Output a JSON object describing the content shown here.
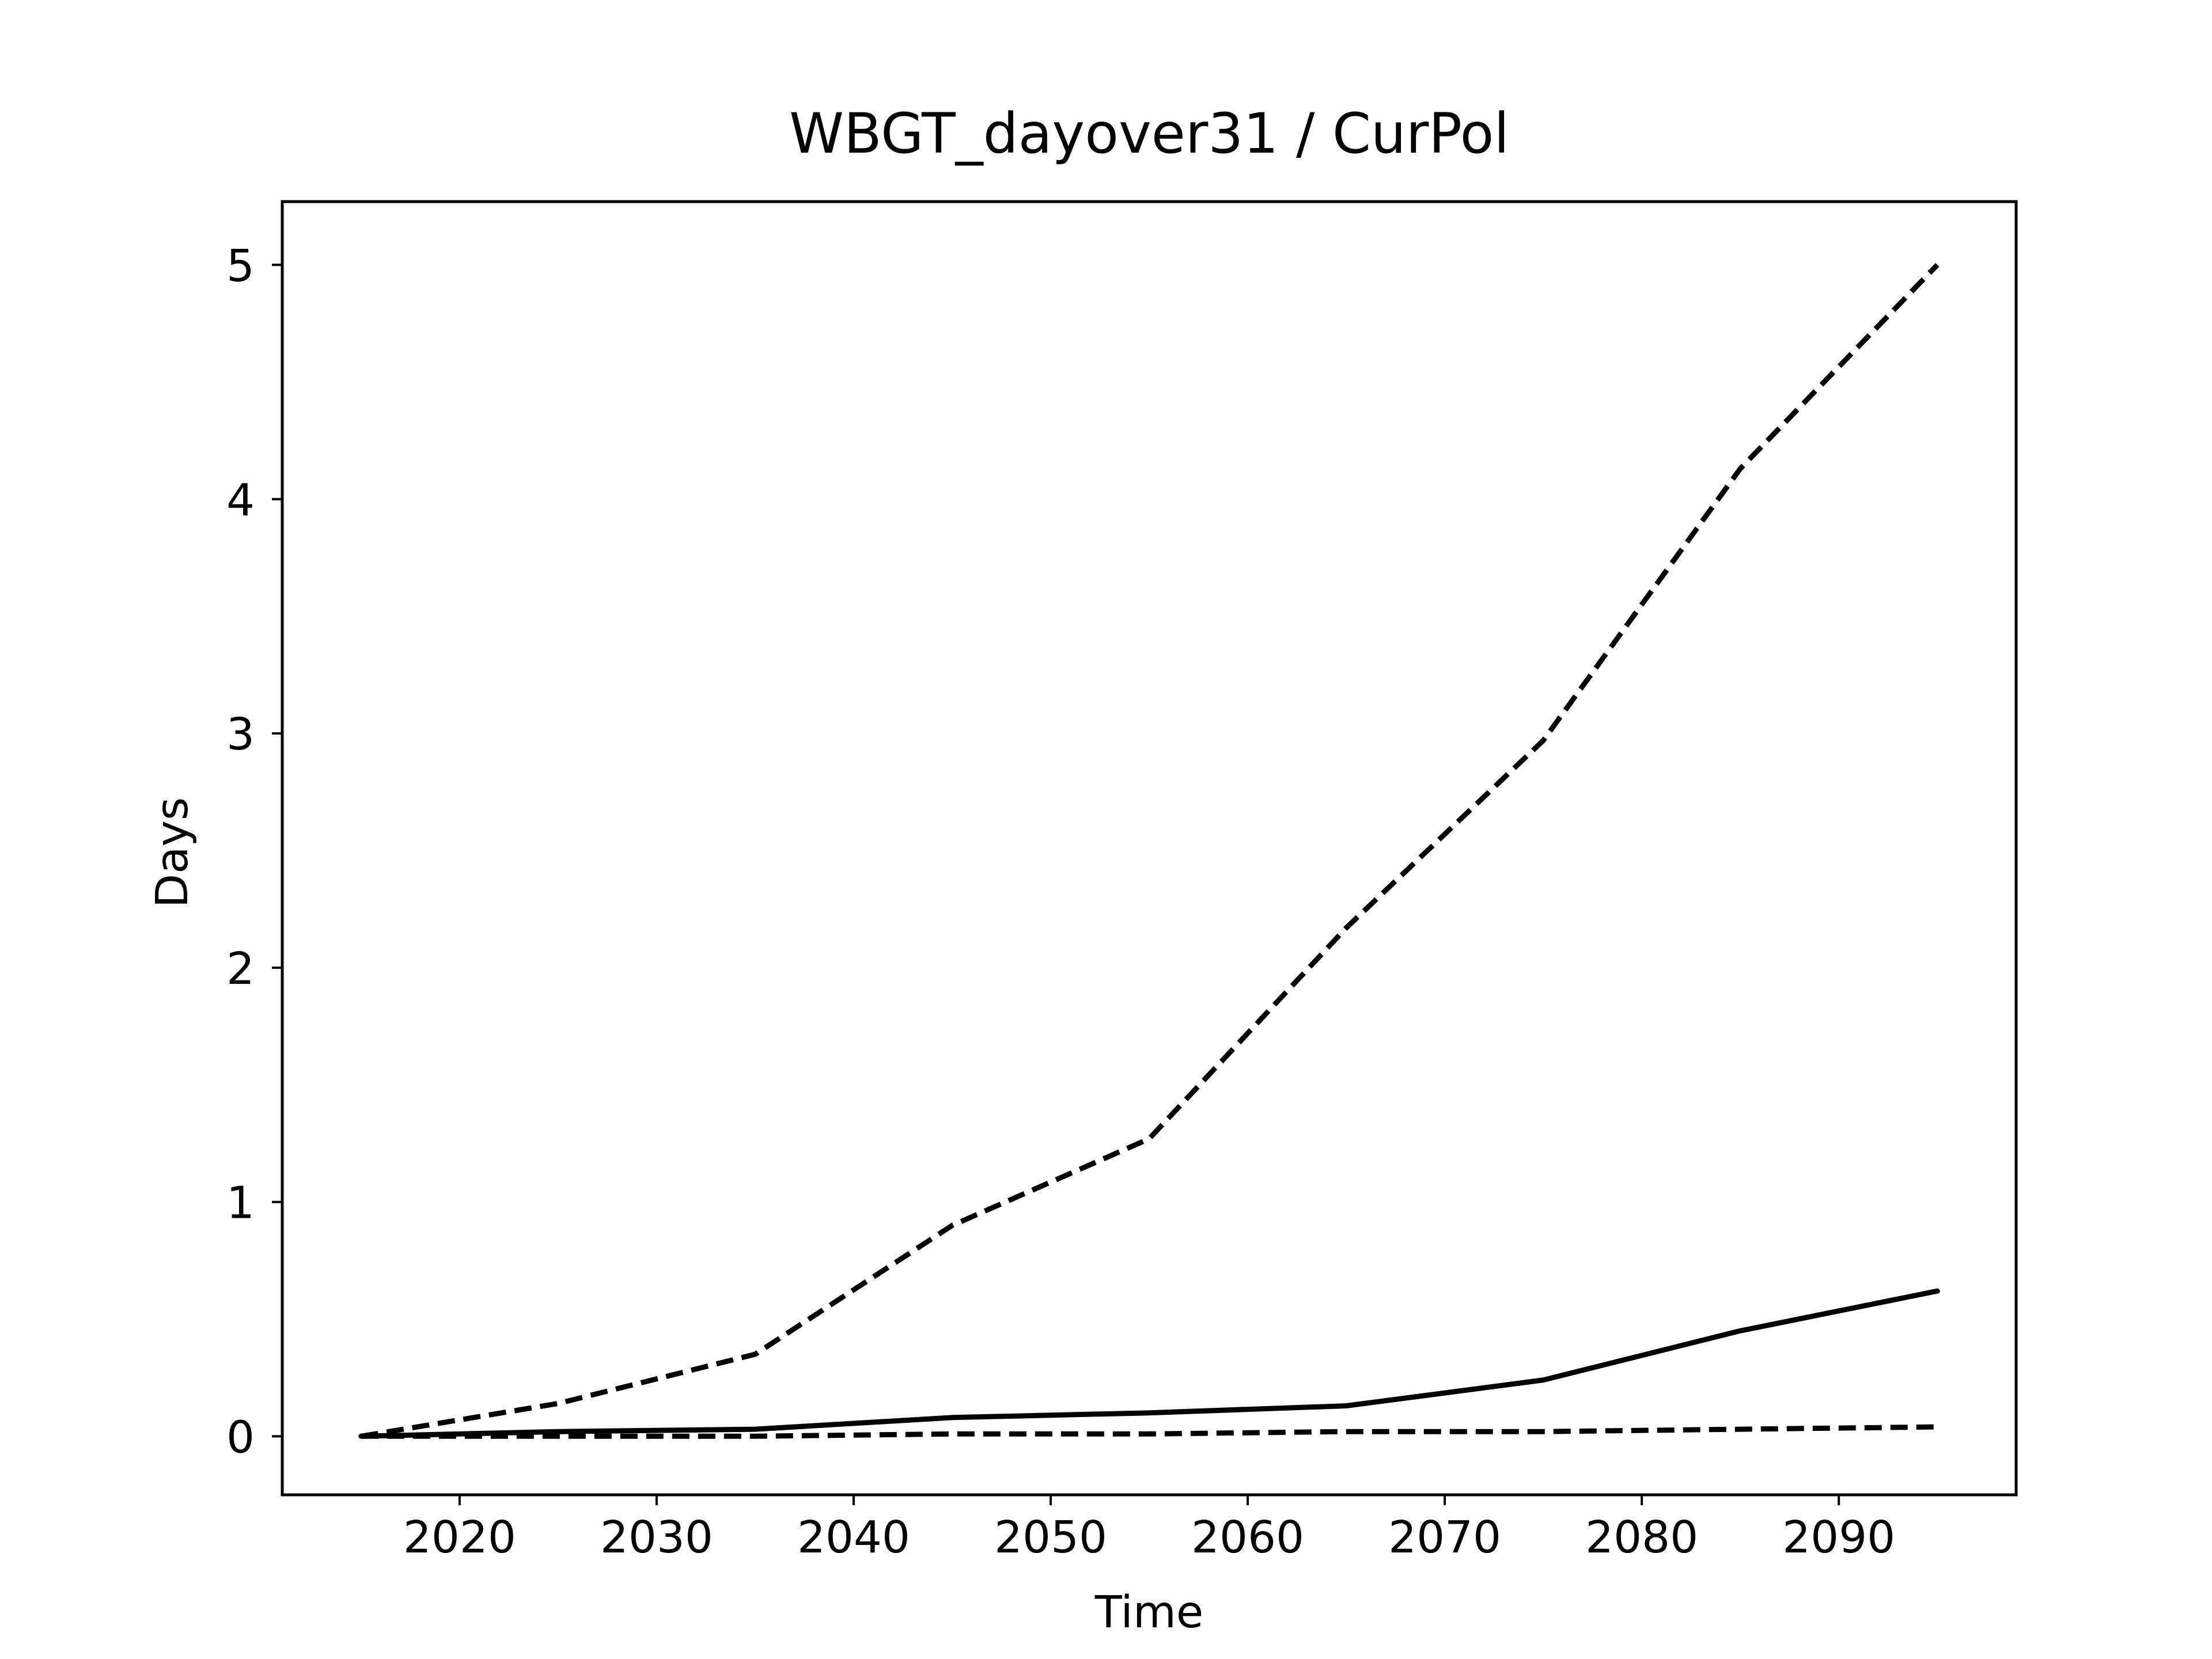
{
  "chart_data": {
    "type": "line",
    "title": "WBGT_dayover31 / CurPol",
    "xlabel": "Time",
    "ylabel": "Days",
    "x": [
      2015,
      2025,
      2035,
      2045,
      2055,
      2065,
      2075,
      2085,
      2095
    ],
    "series": [
      {
        "style": "solid",
        "color": "#000000",
        "values": [
          0.0,
          0.02,
          0.03,
          0.08,
          0.1,
          0.13,
          0.24,
          0.45,
          0.62
        ]
      },
      {
        "style": "dashed",
        "color": "#000000",
        "values": [
          0.0,
          0.14,
          0.35,
          0.9,
          1.27,
          2.17,
          2.97,
          4.13,
          5.0
        ]
      },
      {
        "style": "dashed",
        "color": "#000000",
        "values": [
          0.0,
          0.0,
          0.0,
          0.01,
          0.01,
          0.02,
          0.02,
          0.03,
          0.04
        ]
      }
    ],
    "xlim": [
      2011,
      2099
    ],
    "ylim": [
      -0.25,
      5.27
    ],
    "xticks": [
      "2020",
      "2030",
      "2040",
      "2050",
      "2060",
      "2070",
      "2080",
      "2090"
    ],
    "yticks": [
      "0",
      "1",
      "2",
      "3",
      "4",
      "5"
    ],
    "grid": false,
    "legend": "none"
  }
}
